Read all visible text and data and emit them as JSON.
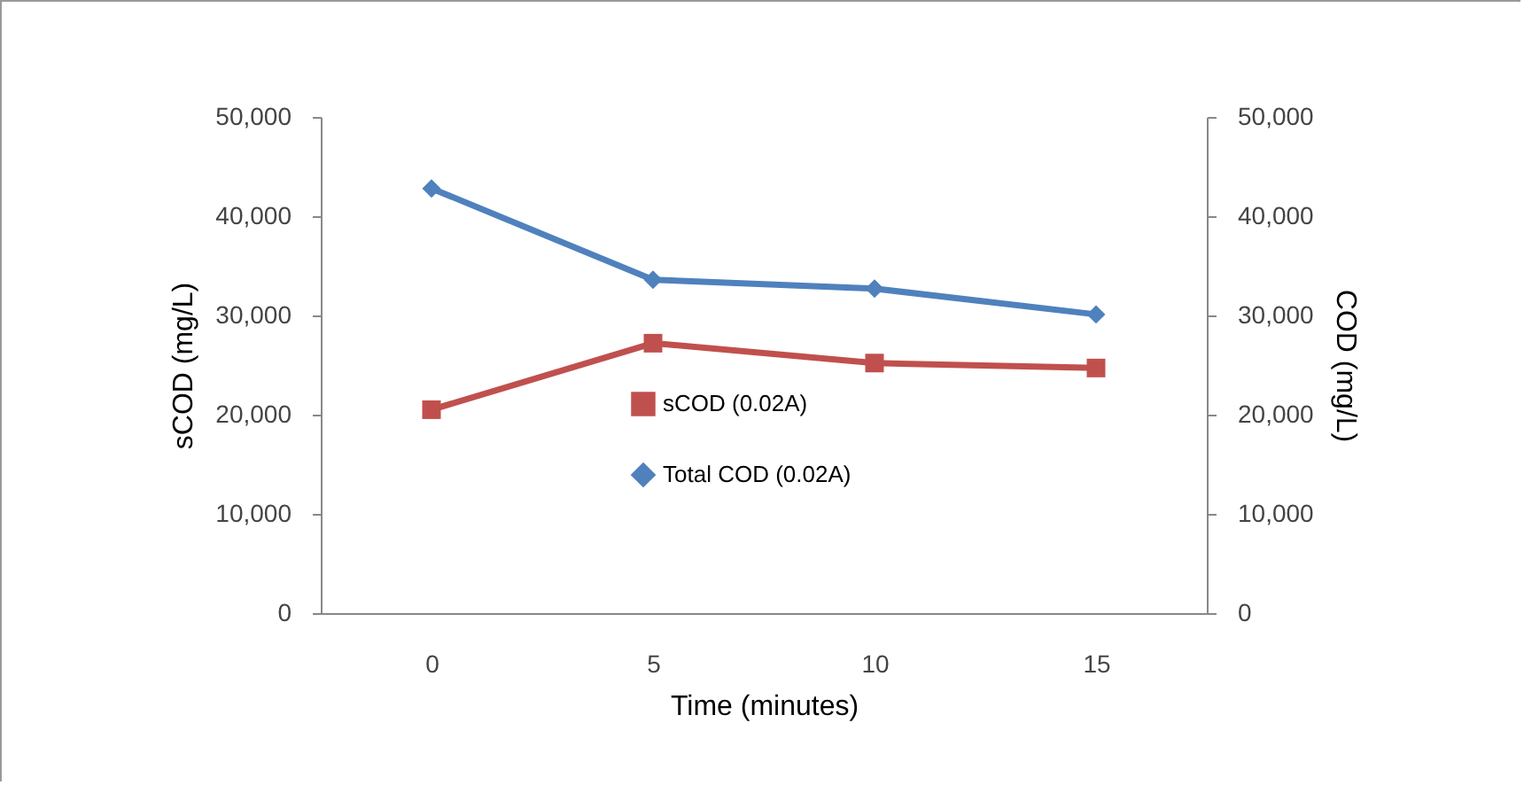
{
  "chart_data": {
    "type": "line",
    "categories": [
      "0",
      "5",
      "10",
      "15"
    ],
    "xlabel": "Time (minutes)",
    "ylabel": "sCOD (mg/L)",
    "y2label": "COD  (mg/L)",
    "ylim": [
      0,
      50000
    ],
    "yticks": [
      0,
      {
        "value": 10000,
        "label": "10,000"
      },
      {
        "value": 20000,
        "label": "20,000"
      },
      {
        "value": 30000,
        "label": "30,000"
      },
      {
        "value": 40000,
        "label": "40,000"
      },
      {
        "value": 50000,
        "label": "50,000"
      }
    ],
    "y2lim": [
      0,
      50000
    ],
    "y2ticks": [
      0,
      {
        "value": 10000,
        "label": "10,000"
      },
      {
        "value": 20000,
        "label": "20,000"
      },
      {
        "value": 30000,
        "label": "30,000"
      },
      {
        "value": 40000,
        "label": "40,000"
      },
      {
        "value": 50000,
        "label": "50,000"
      }
    ],
    "legend": "center",
    "grid": false,
    "series": [
      {
        "name": "sCOD (0.02A)",
        "color": "#c0504d",
        "marker": "square",
        "values": [
          20500,
          27200,
          25200,
          24700
        ]
      },
      {
        "name": "Total COD (0.02A)",
        "color": "#4f81bd",
        "marker": "diamond",
        "axis": "y2",
        "values": [
          42800,
          33600,
          32700,
          30100
        ]
      }
    ]
  }
}
